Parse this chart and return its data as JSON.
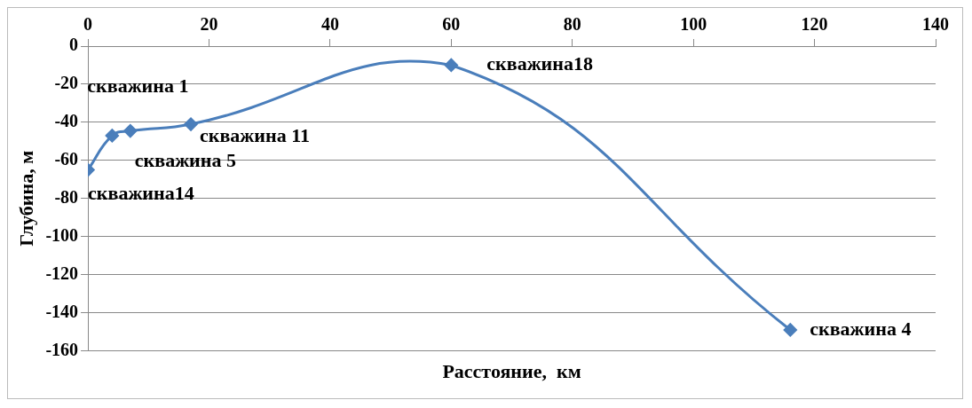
{
  "chart_data": {
    "type": "line",
    "xlabel": "Расстояние,  км",
    "ylabel": "Глубина, м",
    "x": [
      0,
      4,
      7,
      17,
      60,
      116
    ],
    "series": [
      {
        "color": "#4a7ebb",
        "values": [
          -65,
          -47,
          -44.5,
          -41,
          -10,
          -149
        ]
      }
    ],
    "xlim": [
      0,
      140
    ],
    "xticks": [
      0,
      20,
      40,
      60,
      80,
      100,
      120,
      140
    ],
    "ylim": [
      -160,
      0
    ],
    "yticks": [
      -160,
      -140,
      -120,
      -100,
      -80,
      -60,
      -40,
      -20,
      0
    ],
    "grid": "y",
    "marker": "diamond",
    "line_style": "solid",
    "legend": false,
    "annotations": [
      {
        "text": "скважина14",
        "x": 0,
        "y": -65
      },
      {
        "text": "скважина 1",
        "x": 4,
        "y": -47
      },
      {
        "text": "скважина 5",
        "x": 7,
        "y": -44.5
      },
      {
        "text": "скважина 11",
        "x": 17,
        "y": -41
      },
      {
        "text": "скважина18",
        "x": 60,
        "y": -10
      },
      {
        "text": "скважина 4",
        "x": 116,
        "y": -149
      }
    ]
  }
}
